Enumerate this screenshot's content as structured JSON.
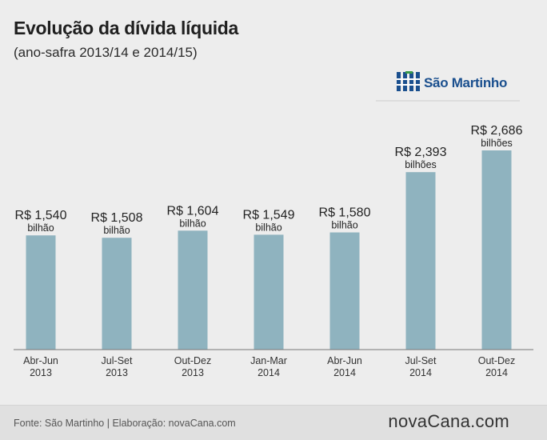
{
  "header": {
    "title": "Evolução da dívida líquida",
    "subtitle": "(ano-safra 2013/14 e 2014/15)"
  },
  "logo": {
    "text": "São Martinho",
    "icon": "sao-martinho-logo-icon",
    "color": "#1a4f8e"
  },
  "footer": {
    "source": "Fonte: São Martinho | Elaboração: novaCana.com",
    "brand": "novaCana.com"
  },
  "colors": {
    "bar": "#8fb3bf",
    "axis": "#777777",
    "text": "#222222"
  },
  "chart_data": {
    "type": "bar",
    "title": "Evolução da dívida líquida",
    "subtitle": "(ano-safra 2013/14 e 2014/15)",
    "categories": [
      [
        "Abr-Jun",
        "2013"
      ],
      [
        "Jul-Set",
        "2013"
      ],
      [
        "Out-Dez",
        "2013"
      ],
      [
        "Jan-Mar",
        "2014"
      ],
      [
        "Abr-Jun",
        "2014"
      ],
      [
        "Jul-Set",
        "2014"
      ],
      [
        "Out-Dez",
        "2014"
      ]
    ],
    "values": [
      1.54,
      1.508,
      1.604,
      1.549,
      1.58,
      2.393,
      2.686
    ],
    "value_labels": [
      "R$ 1,540",
      "R$ 1,508",
      "R$ 1,604",
      "R$ 1,549",
      "R$ 1,580",
      "R$ 2,393",
      "R$ 2,686"
    ],
    "unit_labels": [
      "bilhão",
      "bilhão",
      "bilhão",
      "bilhão",
      "bilhão",
      "bilhões",
      "bilhões"
    ],
    "ylim": [
      0,
      2.686
    ],
    "grid": false,
    "legend": "none"
  }
}
